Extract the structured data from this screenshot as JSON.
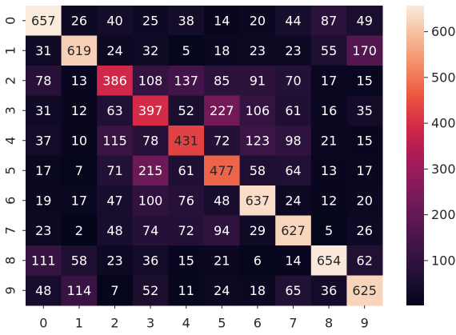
{
  "chart_data": {
    "type": "heatmap",
    "x_categories": [
      "0",
      "1",
      "2",
      "3",
      "4",
      "5",
      "6",
      "7",
      "8",
      "9"
    ],
    "y_categories": [
      "0",
      "1",
      "2",
      "3",
      "4",
      "5",
      "6",
      "7",
      "8",
      "9"
    ],
    "matrix": [
      [
        657,
        26,
        40,
        25,
        38,
        14,
        20,
        44,
        87,
        49
      ],
      [
        31,
        619,
        24,
        32,
        5,
        18,
        23,
        23,
        55,
        170
      ],
      [
        78,
        13,
        386,
        108,
        137,
        85,
        91,
        70,
        17,
        15
      ],
      [
        31,
        12,
        63,
        397,
        52,
        227,
        106,
        61,
        16,
        35
      ],
      [
        37,
        10,
        115,
        78,
        431,
        72,
        123,
        98,
        21,
        15
      ],
      [
        17,
        7,
        71,
        215,
        61,
        477,
        58,
        64,
        13,
        17
      ],
      [
        19,
        17,
        47,
        100,
        76,
        48,
        637,
        24,
        12,
        20
      ],
      [
        23,
        2,
        48,
        74,
        72,
        94,
        29,
        627,
        5,
        26
      ],
      [
        111,
        58,
        23,
        36,
        15,
        21,
        6,
        14,
        654,
        62
      ],
      [
        48,
        114,
        7,
        52,
        11,
        24,
        18,
        65,
        36,
        625
      ]
    ],
    "colorbar_ticks": [
      100,
      200,
      300,
      400,
      500,
      600
    ],
    "value_range": [
      2,
      657
    ],
    "colormap": "rocket",
    "title": "",
    "xlabel": "",
    "ylabel": "",
    "grid": false
  }
}
